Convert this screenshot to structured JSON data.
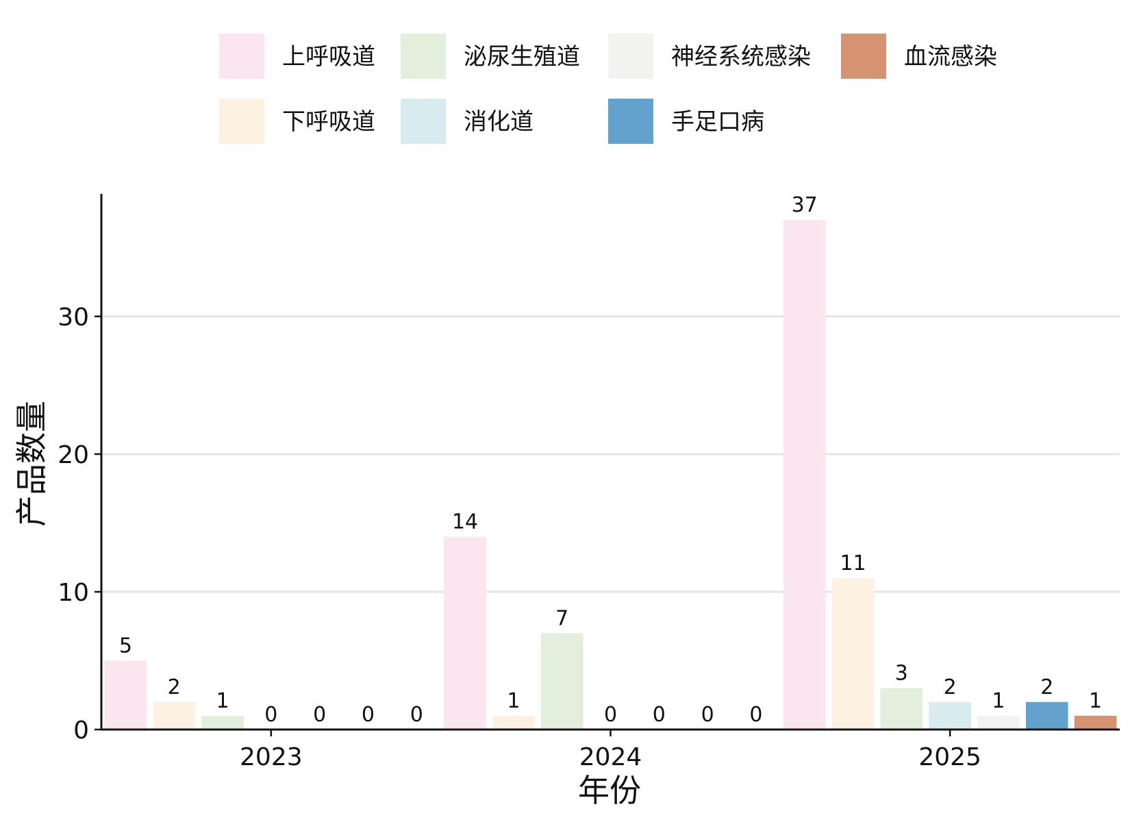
{
  "chart_data": {
    "type": "bar",
    "xlabel": "年份",
    "ylabel": "产品数量",
    "categories": [
      "2023",
      "2024",
      "2025"
    ],
    "ylim": [
      0,
      38.9
    ],
    "yticks": [
      0,
      10,
      20,
      30
    ],
    "grid": "horizontal major",
    "legend_position": "top",
    "series": [
      {
        "name": "上呼吸道",
        "color": "#FBE5EE",
        "values": [
          5,
          14,
          37
        ]
      },
      {
        "name": "下呼吸道",
        "color": "#FDF2E1",
        "values": [
          2,
          1,
          11
        ]
      },
      {
        "name": "泌尿生殖道",
        "color": "#E2EFDC",
        "values": [
          1,
          7,
          3
        ]
      },
      {
        "name": "消化道",
        "color": "#D8ECF0",
        "values": [
          0,
          0,
          2
        ]
      },
      {
        "name": "神经系统感染",
        "color": "#F2F2F0",
        "values": [
          0,
          0,
          1
        ]
      },
      {
        "name": "手足口病",
        "color": "#62A2CD",
        "values": [
          0,
          0,
          2
        ]
      },
      {
        "name": "血流感染",
        "color": "#D59371",
        "values": [
          0,
          0,
          1
        ]
      }
    ]
  }
}
